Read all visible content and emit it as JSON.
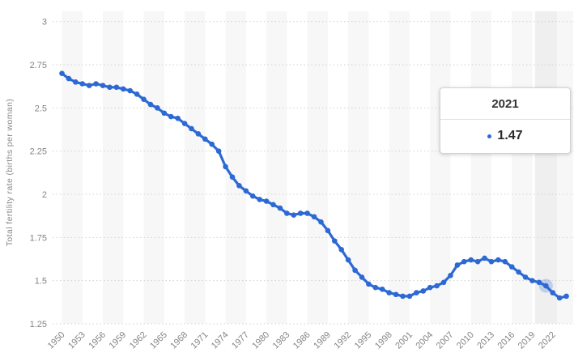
{
  "tooltip": {
    "title": "2021",
    "value": "1.47"
  },
  "colors": {
    "line": "#2d69d4",
    "halo": "rgba(45,105,212,0.25)",
    "band": "#f7f7f7",
    "hover_band": "#efefef",
    "gridline": "#d2d2d2",
    "tick_text": "#848484"
  },
  "chart_data": {
    "type": "line",
    "title": "",
    "xlabel": "",
    "ylabel": "Total fertility rate (births per woman)",
    "ylim": [
      1.25,
      3
    ],
    "grid": "horizontal-dotted",
    "legend_position": "none",
    "y_tick_labels": [
      "3",
      "2.75",
      "2.5",
      "2.25",
      "2",
      "1.75",
      "1.5",
      "1.25"
    ],
    "x_tick_labels": [
      "1950",
      "1953",
      "1956",
      "1959",
      "1962",
      "1965",
      "1968",
      "1971",
      "1974",
      "1977",
      "1980",
      "1983",
      "1986",
      "1989",
      "1992",
      "1995",
      "1998",
      "2001",
      "2004",
      "2007",
      "2010",
      "2013",
      "2016",
      "2019",
      "2022"
    ],
    "x": [
      1950,
      1951,
      1952,
      1953,
      1954,
      1955,
      1956,
      1957,
      1958,
      1959,
      1960,
      1961,
      1962,
      1963,
      1964,
      1965,
      1966,
      1967,
      1968,
      1969,
      1970,
      1971,
      1972,
      1973,
      1974,
      1975,
      1976,
      1977,
      1978,
      1979,
      1980,
      1981,
      1982,
      1983,
      1984,
      1985,
      1986,
      1987,
      1988,
      1989,
      1990,
      1991,
      1992,
      1993,
      1994,
      1995,
      1996,
      1997,
      1998,
      1999,
      2000,
      2001,
      2002,
      2003,
      2004,
      2005,
      2006,
      2007,
      2008,
      2009,
      2010,
      2011,
      2012,
      2013,
      2014,
      2015,
      2016,
      2017,
      2018,
      2019,
      2020,
      2021,
      2022,
      2023,
      2024
    ],
    "values": [
      2.7,
      2.67,
      2.65,
      2.64,
      2.63,
      2.64,
      2.63,
      2.62,
      2.62,
      2.61,
      2.6,
      2.58,
      2.55,
      2.52,
      2.5,
      2.47,
      2.45,
      2.44,
      2.41,
      2.38,
      2.35,
      2.32,
      2.29,
      2.25,
      2.16,
      2.1,
      2.05,
      2.02,
      1.99,
      1.97,
      1.96,
      1.94,
      1.92,
      1.89,
      1.88,
      1.89,
      1.89,
      1.87,
      1.84,
      1.79,
      1.73,
      1.68,
      1.62,
      1.56,
      1.52,
      1.48,
      1.46,
      1.45,
      1.43,
      1.42,
      1.41,
      1.41,
      1.43,
      1.44,
      1.46,
      1.47,
      1.49,
      1.53,
      1.59,
      1.61,
      1.62,
      1.61,
      1.63,
      1.61,
      1.62,
      1.61,
      1.58,
      1.55,
      1.52,
      1.5,
      1.49,
      1.47,
      1.43,
      1.4,
      1.41
    ],
    "highlighted_point": {
      "year": 2021,
      "value": 1.47
    },
    "series_name": "Total fertility rate"
  }
}
